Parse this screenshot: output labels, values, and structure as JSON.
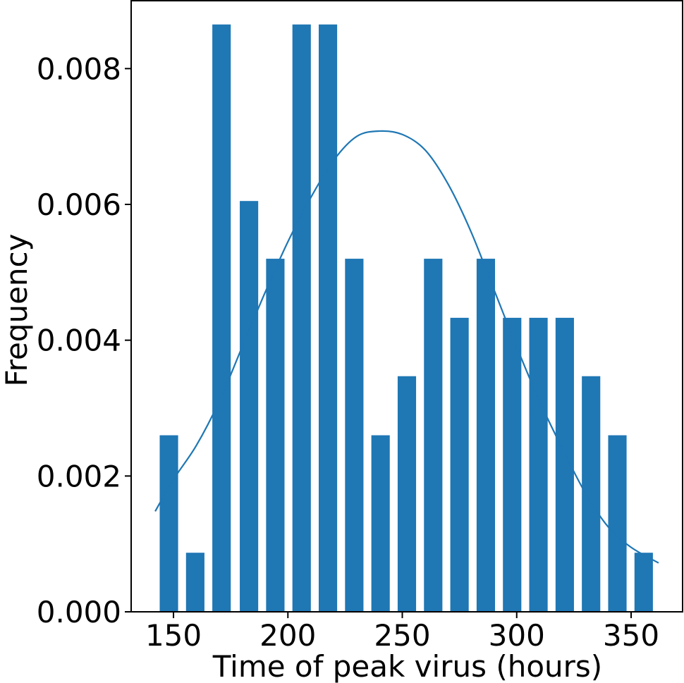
{
  "chart_data": {
    "type": "bar",
    "xlabel": "Time of peak virus (hours)",
    "ylabel": "Frequency",
    "xlim": [
      131.5,
      372.5
    ],
    "ylim": [
      0,
      0.009
    ],
    "x_ticks": [
      150,
      200,
      250,
      300,
      350
    ],
    "x_tick_labels": [
      "150",
      "200",
      "250",
      "300",
      "350"
    ],
    "y_ticks": [
      0,
      0.002,
      0.004,
      0.006,
      0.008
    ],
    "y_tick_labels": [
      "0.000",
      "0.002",
      "0.004",
      "0.006",
      "0.008"
    ],
    "bar_color": "#1f77b4",
    "curve_color": "#1f77b4",
    "grid": false,
    "series": [
      {
        "kind": "bar",
        "bin_width": 11.5,
        "x": [
          148,
          159.5,
          171,
          183,
          194.5,
          206,
          217.5,
          229,
          240.5,
          252,
          263.5,
          275,
          286.5,
          298,
          309.5,
          321,
          332.5,
          344,
          355.5
        ],
        "values": [
          0.0026,
          0.00087,
          0.00865,
          0.00605,
          0.0052,
          0.00865,
          0.00865,
          0.0052,
          0.0026,
          0.00347,
          0.0052,
          0.00433,
          0.0052,
          0.00433,
          0.00433,
          0.00433,
          0.00347,
          0.0026,
          0.00087
        ]
      },
      {
        "kind": "density",
        "x": [
          142,
          150,
          160,
          170,
          180,
          190,
          200,
          210,
          220,
          230,
          240,
          250,
          260,
          270,
          280,
          290,
          300,
          310,
          320,
          330,
          340,
          350,
          362
        ],
        "values": [
          0.00148,
          0.00195,
          0.00245,
          0.0031,
          0.0039,
          0.0047,
          0.00545,
          0.0061,
          0.00665,
          0.007,
          0.00708,
          0.00703,
          0.0068,
          0.0063,
          0.0056,
          0.00475,
          0.0039,
          0.0031,
          0.0024,
          0.00175,
          0.00125,
          0.00095,
          0.00072
        ]
      }
    ]
  }
}
